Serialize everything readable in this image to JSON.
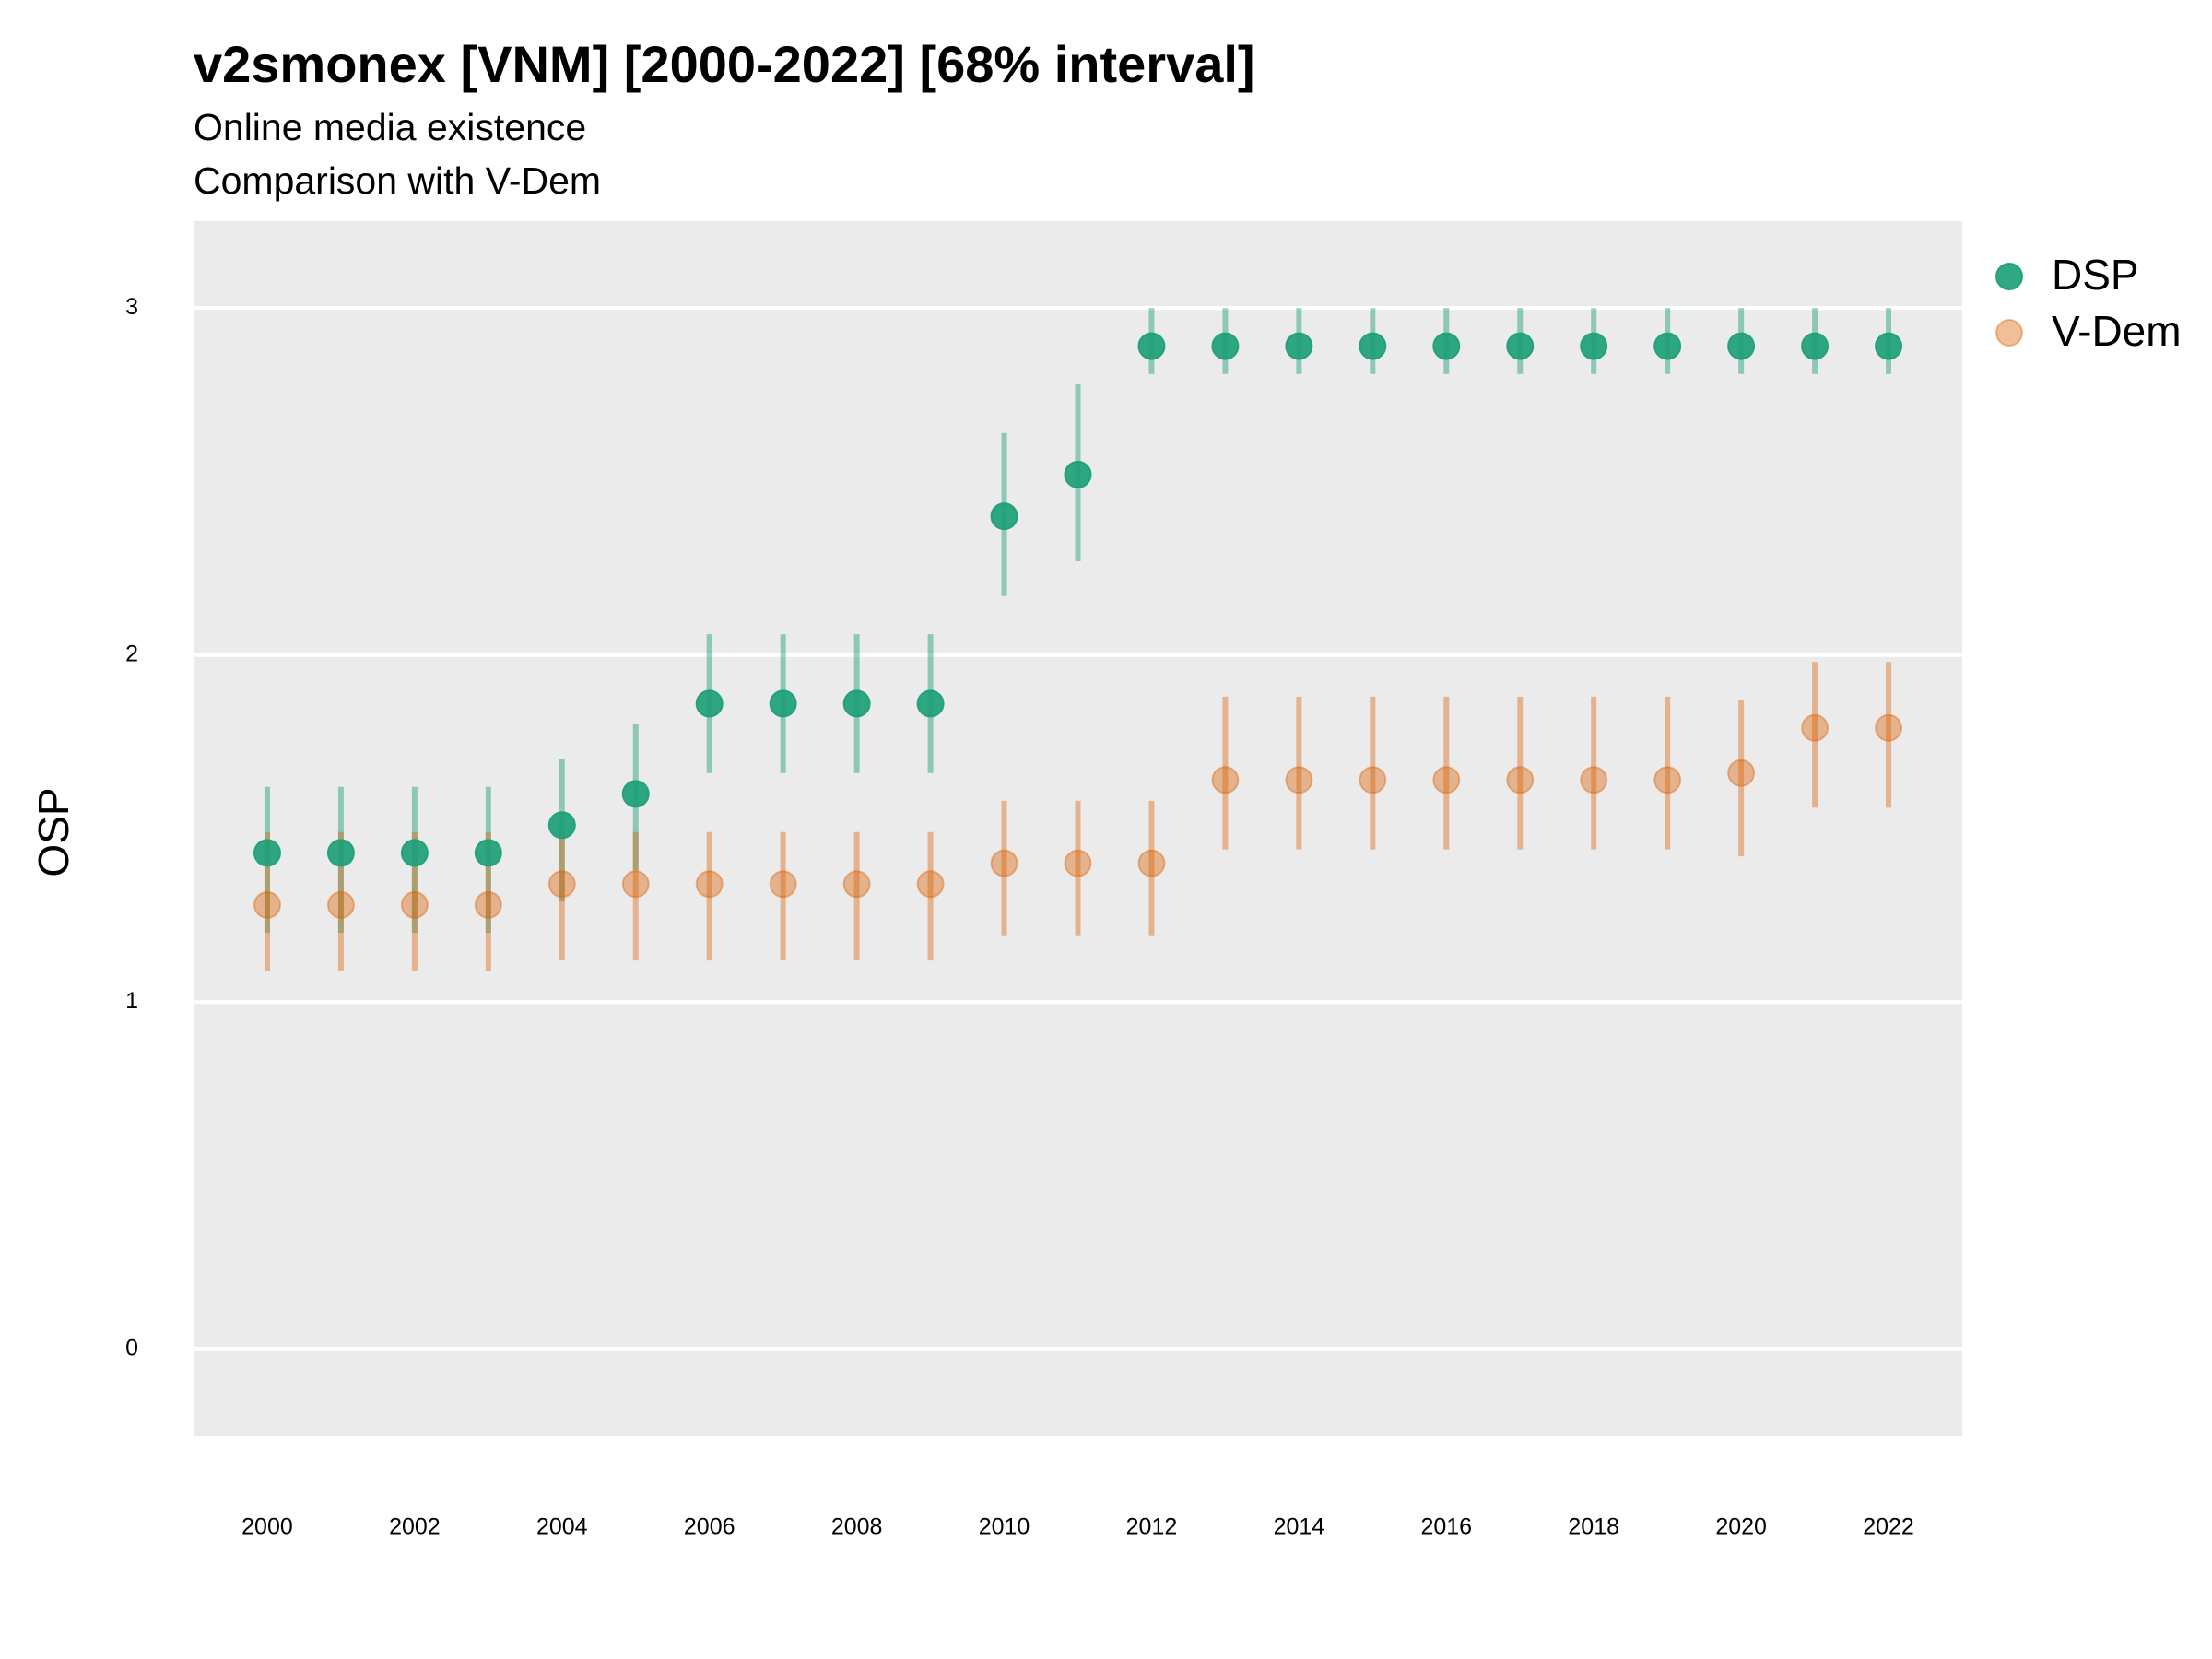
{
  "chart_data": {
    "type": "errorbar",
    "title": "v2smonex [VNM] [2000-2022] [68% interval]",
    "subtitle": [
      "Online media existence",
      "Comparison with V-Dem"
    ],
    "y_label": "OSP",
    "x": [
      2000,
      2001,
      2002,
      2003,
      2004,
      2005,
      2006,
      2007,
      2008,
      2009,
      2010,
      2011,
      2012,
      2013,
      2014,
      2015,
      2016,
      2017,
      2018,
      2019,
      2020,
      2021,
      2022
    ],
    "xlim": [
      1999,
      2023
    ],
    "xticks": [
      2000,
      2002,
      2004,
      2006,
      2008,
      2010,
      2012,
      2014,
      2016,
      2018,
      2020,
      2022
    ],
    "ylim": [
      -0.25,
      3.25
    ],
    "yticks": [
      0,
      1,
      2,
      3
    ],
    "grid": true,
    "legend": "right",
    "series": [
      {
        "name": "DSP",
        "color": "#1b9e77",
        "values": [
          1.43,
          1.43,
          1.43,
          1.43,
          1.51,
          1.6,
          1.86,
          1.86,
          1.86,
          1.86,
          2.4,
          2.52,
          2.89,
          2.89,
          2.89,
          2.89,
          2.89,
          2.89,
          2.89,
          2.89,
          2.89,
          2.89,
          2.89
        ],
        "lower": [
          1.2,
          1.2,
          1.2,
          1.2,
          1.29,
          1.38,
          1.66,
          1.66,
          1.66,
          1.66,
          2.17,
          2.27,
          2.81,
          2.81,
          2.81,
          2.81,
          2.81,
          2.81,
          2.81,
          2.81,
          2.81,
          2.81,
          2.81
        ],
        "upper": [
          1.62,
          1.62,
          1.62,
          1.62,
          1.7,
          1.8,
          2.06,
          2.06,
          2.06,
          2.06,
          2.64,
          2.78,
          3.0,
          3.0,
          3.0,
          3.0,
          3.0,
          3.0,
          3.0,
          3.0,
          3.0,
          3.0,
          3.0
        ]
      },
      {
        "name": "V-Dem",
        "color": "#d95f02",
        "values": [
          1.28,
          1.28,
          1.28,
          1.28,
          1.34,
          1.34,
          1.34,
          1.34,
          1.34,
          1.34,
          1.4,
          1.4,
          1.4,
          1.64,
          1.64,
          1.64,
          1.64,
          1.64,
          1.64,
          1.64,
          1.66,
          1.79,
          1.79
        ],
        "lower": [
          1.09,
          1.09,
          1.09,
          1.09,
          1.12,
          1.12,
          1.12,
          1.12,
          1.12,
          1.12,
          1.19,
          1.19,
          1.19,
          1.44,
          1.44,
          1.44,
          1.44,
          1.44,
          1.44,
          1.44,
          1.42,
          1.56,
          1.56
        ],
        "upper": [
          1.49,
          1.49,
          1.49,
          1.49,
          1.49,
          1.49,
          1.49,
          1.49,
          1.49,
          1.49,
          1.58,
          1.58,
          1.58,
          1.88,
          1.88,
          1.88,
          1.88,
          1.88,
          1.88,
          1.88,
          1.87,
          1.98,
          1.98
        ]
      }
    ]
  }
}
